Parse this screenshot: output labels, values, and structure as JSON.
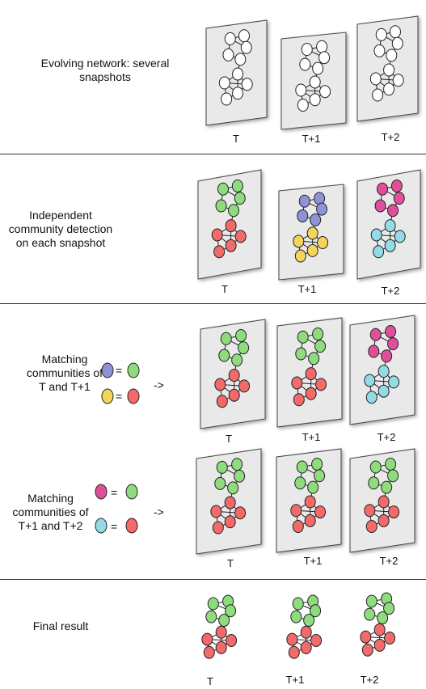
{
  "rows": [
    {
      "text": "Evolving network: several snapshots"
    },
    {
      "text": "Independent community detection on each snapshot"
    },
    {
      "text": "Matching communities of T and T+1"
    },
    {
      "text": "Matching communities of T+1 and T+2"
    },
    {
      "text": "Final result"
    }
  ],
  "snapshot_labels": [
    "T",
    "T+1",
    "T+2"
  ],
  "equals": "=",
  "arrow": "->",
  "colors": {
    "green": "#8fdc7e",
    "red": "#f26a6a",
    "blue": "#8f93d6",
    "yellow": "#f4d45a",
    "magenta": "#e0509a",
    "cyan": "#93dbe6",
    "white": "#ffffff",
    "panel": "#e9e9e9"
  }
}
